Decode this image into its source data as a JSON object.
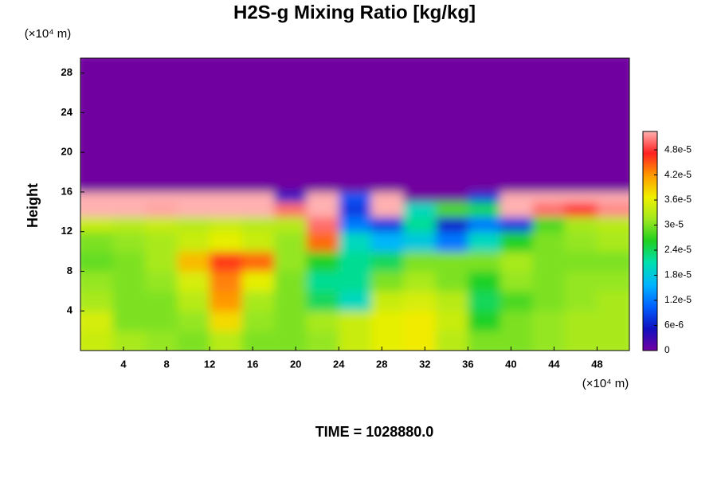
{
  "chart_data": {
    "type": "heatmap",
    "title": "H2S-g Mixing Ratio [kg/kg]",
    "y_label": "Height",
    "y_unit": "(×10⁴ m)",
    "x_unit": "(×10⁴ m)",
    "footer": "TIME = 1028880.0",
    "xlim": [
      0,
      51
    ],
    "ylim": [
      0,
      29.5
    ],
    "xticks": [
      4,
      8,
      12,
      16,
      20,
      24,
      28,
      32,
      36,
      40,
      44,
      48
    ],
    "yticks": [
      4,
      8,
      12,
      16,
      20,
      24,
      28
    ],
    "x_edges": [
      0,
      3,
      6,
      9,
      12,
      15,
      18,
      21,
      24,
      27,
      30,
      33,
      36,
      39,
      42,
      45,
      48,
      51
    ],
    "y_edges": [
      0,
      2,
      4,
      6,
      8,
      10,
      12,
      13.5,
      15,
      16,
      29.5
    ],
    "z": [
      [
        3.4e-05,
        3.2e-05,
        3.1e-05,
        3e-05,
        3.3e-05,
        3e-05,
        3e-05,
        3.1e-05,
        3.4e-05,
        3.6e-05,
        3.7e-05,
        3.3e-05,
        3e-05,
        3e-05,
        3.1e-05,
        3.2e-05,
        3.2e-05
      ],
      [
        3.5e-05,
        3e-05,
        3e-05,
        3.1e-05,
        3.8e-05,
        3.1e-05,
        3e-05,
        3.2e-05,
        3.4e-05,
        3.6e-05,
        3.7e-05,
        3.4e-05,
        2.6e-05,
        3e-05,
        3.1e-05,
        3.2e-05,
        3.2e-05
      ],
      [
        3.2e-05,
        3e-05,
        3e-05,
        3.3e-05,
        4.2e-05,
        3.2e-05,
        3e-05,
        2.4e-05,
        2e-05,
        3.4e-05,
        3.5e-05,
        3.3e-05,
        2.4e-05,
        2.8e-05,
        3e-05,
        3.1e-05,
        3.2e-05
      ],
      [
        3.1e-05,
        3e-05,
        3.1e-05,
        3.5e-05,
        4.3e-05,
        3.6e-05,
        3e-05,
        2.2e-05,
        2.2e-05,
        3e-05,
        3.2e-05,
        3e-05,
        2.6e-05,
        3.1e-05,
        3e-05,
        3.1e-05,
        3.1e-05
      ],
      [
        2.9e-05,
        3e-05,
        3.2e-05,
        4e-05,
        4.6e-05,
        4.4e-05,
        3.1e-05,
        2.6e-05,
        2.2e-05,
        2.4e-05,
        3e-05,
        3e-05,
        3e-05,
        3.2e-05,
        3e-05,
        3e-05,
        3e-05
      ],
      [
        3e-05,
        3.1e-05,
        3.2e-05,
        3.4e-05,
        3.6e-05,
        3.4e-05,
        3.1e-05,
        4.4e-05,
        2e-05,
        1.6e-05,
        1.8e-05,
        1.2e-05,
        2e-05,
        2.6e-05,
        3e-05,
        3.1e-05,
        3.2e-05
      ],
      [
        3.4e-05,
        3.3e-05,
        3.4e-05,
        3.3e-05,
        3.4e-05,
        3.3e-05,
        3.3e-05,
        5e-05,
        1.2e-05,
        8e-06,
        2.2e-05,
        6e-06,
        1.2e-05,
        8e-06,
        2.8e-05,
        3.2e-05,
        3.3e-05
      ],
      [
        5.3e-05,
        5.3e-05,
        5.2e-05,
        5.3e-05,
        5.3e-05,
        5.3e-05,
        5e-05,
        5.3e-05,
        8e-06,
        5.3e-05,
        2e-05,
        2.8e-05,
        2.4e-05,
        5.3e-05,
        5e-05,
        4.8e-05,
        5.1e-05
      ],
      [
        5.3e-05,
        5.3e-05,
        5.3e-05,
        5.3e-05,
        5.3e-05,
        5.3e-05,
        6e-06,
        5.3e-05,
        1e-05,
        5.3e-05,
        0,
        0,
        8e-06,
        5.3e-05,
        5.3e-05,
        5.3e-05,
        5.3e-05
      ],
      [
        0,
        0,
        0,
        0,
        0,
        0,
        0,
        0,
        0,
        0,
        0,
        0,
        0,
        0,
        0,
        0,
        0
      ]
    ],
    "clim": [
      0,
      5.24e-05
    ],
    "cticks": [
      0,
      {
        "value": 6e-06,
        "label": "6e-6"
      },
      {
        "value": 1.2e-05,
        "label": "1.2e-5"
      },
      {
        "value": 1.8e-05,
        "label": "1.8e-5"
      },
      {
        "value": 2.4e-05,
        "label": "2.4e-5"
      },
      {
        "value": 3e-05,
        "label": "3e-5"
      },
      {
        "value": 3.6e-05,
        "label": "3.6e-5"
      },
      {
        "value": 4.2e-05,
        "label": "4.2e-5"
      },
      {
        "value": 4.8e-05,
        "label": "4.8e-5"
      }
    ],
    "colorscale": [
      "#7000a0",
      "#1010c0",
      "#0060ff",
      "#00b4ff",
      "#00e0b0",
      "#20d020",
      "#a0e820",
      "#f0f000",
      "#ff9a00",
      "#ff2020",
      "#ffb0b0"
    ]
  }
}
